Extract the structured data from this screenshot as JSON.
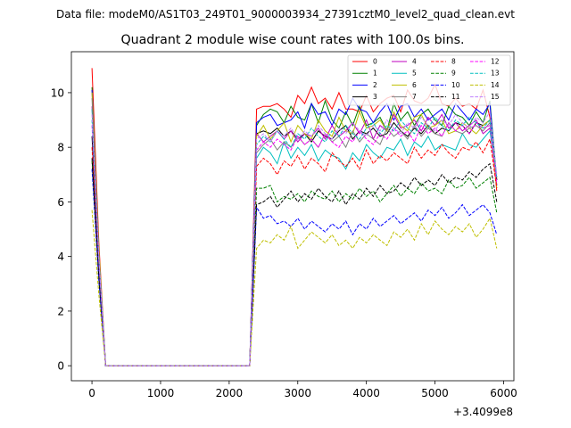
{
  "chart_data": {
    "type": "line",
    "suptitle": "Data file: modeM0/AS1T03_249T01_9000003934_27391cztM0_level2_quad_clean.evt",
    "title": "Quadrant 2 module wise count rates with 100.0s bins.",
    "xlabel": "",
    "ylabel": "",
    "x_offset_label": "+3.4099e8",
    "xlim": [
      -300,
      6150
    ],
    "ylim": [
      -0.55,
      11.5
    ],
    "xticks": [
      0,
      1000,
      2000,
      3000,
      4000,
      5000,
      6000
    ],
    "yticks": [
      0,
      2,
      4,
      6,
      8,
      10
    ],
    "grid": false,
    "legend_position": "top-right",
    "legend_columns": 4,
    "x": [
      0,
      100,
      200,
      300,
      400,
      500,
      600,
      700,
      800,
      900,
      1000,
      1100,
      1200,
      1300,
      1400,
      1500,
      1600,
      1700,
      1800,
      1900,
      2000,
      2100,
      2200,
      2300,
      2400,
      2500,
      2600,
      2700,
      2800,
      2900,
      3000,
      3100,
      3200,
      3300,
      3400,
      3500,
      3600,
      3700,
      3800,
      3900,
      4000,
      4100,
      4200,
      4300,
      4400,
      4500,
      4600,
      4700,
      4800,
      4900,
      5000,
      5100,
      5200,
      5300,
      5400,
      5500,
      5600,
      5700,
      5800,
      5900
    ],
    "series": [
      {
        "name": "0",
        "color": "#ff0000",
        "dash": false,
        "values": [
          10.9,
          4.5,
          0,
          0,
          0,
          0,
          0,
          0,
          0,
          0,
          0,
          0,
          0,
          0,
          0,
          0,
          0,
          0,
          0,
          0,
          0,
          0,
          0,
          0,
          9.4,
          9.5,
          9.5,
          9.6,
          9.4,
          9.1,
          9.9,
          9.6,
          10.2,
          9.6,
          9.8,
          9.4,
          10.0,
          9.4,
          9.4,
          9.3,
          9.9,
          9.3,
          9.6,
          9.8,
          9.9,
          9.3,
          10.1,
          9.7,
          9.6,
          9.8,
          10.3,
          9.6,
          9.5,
          9.8,
          9.5,
          9.6,
          9.4,
          10.1,
          9.1,
          6.4
        ]
      },
      {
        "name": "1",
        "color": "#008000",
        "dash": false,
        "values": [
          10.2,
          4.2,
          0,
          0,
          0,
          0,
          0,
          0,
          0,
          0,
          0,
          0,
          0,
          0,
          0,
          0,
          0,
          0,
          0,
          0,
          0,
          0,
          0,
          0,
          8.8,
          9.2,
          9.4,
          9.3,
          8.9,
          9.5,
          9.1,
          9.0,
          9.6,
          8.9,
          9.7,
          9.0,
          8.7,
          9.3,
          8.8,
          9.5,
          8.8,
          8.9,
          9.1,
          8.6,
          9.6,
          9.0,
          9.3,
          8.8,
          9.2,
          9.4,
          9.0,
          8.8,
          9.5,
          9.2,
          9.1,
          8.8,
          9.3,
          8.9,
          9.7,
          6.8
        ]
      },
      {
        "name": "2",
        "color": "#0000ff",
        "dash": false,
        "values": [
          10.1,
          4.1,
          0,
          0,
          0,
          0,
          0,
          0,
          0,
          0,
          0,
          0,
          0,
          0,
          0,
          0,
          0,
          0,
          0,
          0,
          0,
          0,
          0,
          0,
          8.9,
          9.1,
          9.2,
          8.8,
          8.9,
          9.0,
          9.3,
          8.7,
          9.6,
          9.2,
          9.3,
          8.8,
          9.4,
          9.2,
          9.8,
          9.4,
          9.3,
          8.9,
          9.3,
          9.6,
          9.0,
          9.5,
          9.6,
          9.1,
          9.4,
          9.0,
          9.2,
          9.4,
          9.0,
          9.6,
          9.3,
          9.0,
          9.4,
          9.2,
          9.6,
          6.6
        ]
      },
      {
        "name": "3",
        "color": "#000000",
        "dash": false,
        "values": [
          8.4,
          3.6,
          0,
          0,
          0,
          0,
          0,
          0,
          0,
          0,
          0,
          0,
          0,
          0,
          0,
          0,
          0,
          0,
          0,
          0,
          0,
          0,
          0,
          0,
          8.5,
          8.6,
          8.5,
          8.7,
          8.4,
          8.6,
          8.3,
          8.5,
          8.2,
          8.6,
          8.4,
          8.3,
          8.6,
          8.8,
          8.3,
          8.6,
          8.5,
          8.7,
          8.4,
          8.5,
          8.9,
          8.6,
          8.4,
          8.7,
          8.5,
          8.8,
          8.5,
          8.7,
          8.6,
          8.9,
          8.8,
          8.5,
          8.9,
          8.8,
          9.0,
          6.8
        ]
      },
      {
        "name": "4",
        "color": "#bf00bf",
        "dash": false,
        "values": [
          9.5,
          4.0,
          0,
          0,
          0,
          0,
          0,
          0,
          0,
          0,
          0,
          0,
          0,
          0,
          0,
          0,
          0,
          0,
          0,
          0,
          0,
          0,
          0,
          0,
          8.5,
          8.2,
          8.4,
          8.6,
          8.3,
          8.6,
          8.2,
          8.5,
          8.4,
          8.7,
          8.3,
          8.8,
          8.4,
          8.6,
          8.9,
          8.5,
          9.0,
          8.3,
          8.8,
          8.6,
          9.2,
          8.7,
          8.8,
          9.0,
          8.6,
          9.1,
          8.8,
          9.2,
          8.7,
          8.9,
          8.6,
          8.8,
          9.0,
          8.5,
          8.7,
          6.6
        ]
      },
      {
        "name": "5",
        "color": "#00bfbf",
        "dash": false,
        "values": [
          9.4,
          4.0,
          0,
          0,
          0,
          0,
          0,
          0,
          0,
          0,
          0,
          0,
          0,
          0,
          0,
          0,
          0,
          0,
          0,
          0,
          0,
          0,
          0,
          0,
          7.6,
          8.0,
          7.8,
          7.4,
          8.2,
          7.6,
          8.0,
          7.7,
          8.1,
          7.5,
          7.9,
          7.7,
          7.6,
          7.2,
          7.8,
          7.5,
          8.1,
          7.8,
          7.6,
          8.0,
          7.9,
          8.3,
          7.7,
          8.2,
          8.0,
          8.4,
          7.9,
          8.1,
          8.0,
          7.9,
          8.5,
          8.1,
          8.0,
          8.3,
          8.6,
          6.9
        ]
      },
      {
        "name": "6",
        "color": "#bfbf00",
        "dash": false,
        "values": [
          10.0,
          4.3,
          0,
          0,
          0,
          0,
          0,
          0,
          0,
          0,
          0,
          0,
          0,
          0,
          0,
          0,
          0,
          0,
          0,
          0,
          0,
          0,
          0,
          0,
          8.4,
          8.8,
          8.3,
          8.6,
          8.9,
          8.2,
          8.8,
          8.5,
          8.3,
          9.0,
          8.6,
          8.4,
          9.1,
          8.6,
          8.5,
          9.3,
          8.7,
          8.8,
          9.0,
          8.6,
          9.3,
          8.8,
          8.6,
          9.1,
          9.2,
          8.7,
          8.8,
          9.0,
          8.5,
          8.6,
          8.9,
          8.7,
          8.5,
          8.8,
          9.0,
          6.5
        ]
      },
      {
        "name": "7",
        "color": "#808080",
        "dash": false,
        "values": [
          9.8,
          4.1,
          0,
          0,
          0,
          0,
          0,
          0,
          0,
          0,
          0,
          0,
          0,
          0,
          0,
          0,
          0,
          0,
          0,
          0,
          0,
          0,
          0,
          0,
          7.8,
          8.1,
          8.3,
          7.9,
          8.2,
          8.0,
          8.4,
          8.1,
          8.3,
          8.0,
          8.5,
          8.2,
          8.4,
          8.0,
          8.6,
          8.2,
          8.5,
          8.3,
          8.1,
          8.7,
          8.4,
          8.6,
          8.3,
          8.8,
          8.4,
          8.7,
          8.5,
          8.4,
          8.9,
          8.6,
          8.5,
          8.7,
          8.8,
          8.6,
          8.9,
          6.9
        ]
      },
      {
        "name": "8",
        "color": "#ff0000",
        "dash": true,
        "values": [
          8.0,
          3.4,
          0,
          0,
          0,
          0,
          0,
          0,
          0,
          0,
          0,
          0,
          0,
          0,
          0,
          0,
          0,
          0,
          0,
          0,
          0,
          0,
          0,
          0,
          7.3,
          7.6,
          7.4,
          7.0,
          7.5,
          7.3,
          7.7,
          7.2,
          7.6,
          7.4,
          7.1,
          7.8,
          7.5,
          7.3,
          7.6,
          7.2,
          7.9,
          7.4,
          7.7,
          7.5,
          7.8,
          7.6,
          7.4,
          8.0,
          7.6,
          7.9,
          7.7,
          8.1,
          7.8,
          7.6,
          8.0,
          7.9,
          8.2,
          7.8,
          8.3,
          6.5
        ]
      },
      {
        "name": "9",
        "color": "#008000",
        "dash": true,
        "values": [
          7.5,
          3.2,
          0,
          0,
          0,
          0,
          0,
          0,
          0,
          0,
          0,
          0,
          0,
          0,
          0,
          0,
          0,
          0,
          0,
          0,
          0,
          0,
          0,
          0,
          6.5,
          6.5,
          6.6,
          6.0,
          6.2,
          6.1,
          6.3,
          6.0,
          6.4,
          6.2,
          6.1,
          6.4,
          6.0,
          6.3,
          6.1,
          6.5,
          6.2,
          6.4,
          6.0,
          6.3,
          6.6,
          6.2,
          6.5,
          6.3,
          6.7,
          6.4,
          6.5,
          6.3,
          6.8,
          6.5,
          6.6,
          6.9,
          6.5,
          6.7,
          6.9,
          5.6
        ]
      },
      {
        "name": "10",
        "color": "#0000ff",
        "dash": true,
        "values": [
          7.2,
          3.1,
          0,
          0,
          0,
          0,
          0,
          0,
          0,
          0,
          0,
          0,
          0,
          0,
          0,
          0,
          0,
          0,
          0,
          0,
          0,
          0,
          0,
          0,
          5.8,
          5.4,
          5.5,
          5.2,
          5.3,
          5.1,
          5.4,
          5.0,
          5.3,
          5.1,
          4.9,
          5.2,
          5.0,
          5.3,
          4.8,
          5.2,
          5.0,
          5.4,
          5.1,
          5.3,
          5.5,
          5.2,
          5.4,
          5.6,
          5.3,
          5.7,
          5.5,
          5.8,
          5.4,
          5.6,
          5.9,
          5.5,
          5.7,
          5.9,
          5.6,
          4.8
        ]
      },
      {
        "name": "11",
        "color": "#000000",
        "dash": true,
        "values": [
          7.6,
          3.3,
          0,
          0,
          0,
          0,
          0,
          0,
          0,
          0,
          0,
          0,
          0,
          0,
          0,
          0,
          0,
          0,
          0,
          0,
          0,
          0,
          0,
          0,
          5.9,
          6.0,
          6.2,
          5.8,
          6.1,
          6.4,
          6.0,
          6.3,
          6.1,
          6.5,
          6.2,
          6.0,
          6.4,
          5.9,
          6.3,
          6.1,
          6.5,
          6.2,
          6.6,
          6.3,
          6.4,
          6.7,
          6.5,
          6.9,
          6.6,
          6.8,
          6.6,
          7.0,
          6.7,
          6.9,
          6.8,
          7.1,
          6.9,
          7.2,
          7.4,
          6.0
        ]
      },
      {
        "name": "12",
        "color": "#ff00ff",
        "dash": true,
        "values": [
          8.8,
          3.8,
          0,
          0,
          0,
          0,
          0,
          0,
          0,
          0,
          0,
          0,
          0,
          0,
          0,
          0,
          0,
          0,
          0,
          0,
          0,
          0,
          0,
          0,
          7.9,
          8.2,
          8.0,
          8.3,
          8.1,
          7.9,
          8.4,
          8.1,
          8.3,
          8.0,
          8.5,
          8.2,
          8.0,
          8.4,
          8.2,
          8.6,
          8.3,
          8.1,
          8.5,
          8.3,
          8.7,
          8.4,
          8.6,
          8.2,
          8.8,
          8.5,
          8.7,
          8.4,
          8.9,
          8.6,
          8.8,
          8.5,
          8.9,
          8.7,
          8.8,
          6.7
        ]
      },
      {
        "name": "13",
        "color": "#00bfbf",
        "dash": true,
        "values": [
          9.0,
          3.9,
          0,
          0,
          0,
          0,
          0,
          0,
          0,
          0,
          0,
          0,
          0,
          0,
          0,
          0,
          0,
          0,
          0,
          0,
          0,
          0,
          0,
          0,
          8.1,
          8.4,
          8.2,
          8.6,
          8.3,
          8.0,
          8.5,
          8.3,
          8.7,
          8.4,
          8.2,
          8.6,
          8.4,
          8.8,
          8.5,
          8.3,
          8.7,
          8.9,
          8.5,
          8.8,
          8.6,
          9.0,
          8.7,
          8.5,
          8.9,
          8.7,
          9.1,
          8.8,
          8.6,
          9.0,
          8.8,
          9.1,
          8.9,
          8.7,
          9.0,
          6.9
        ]
      },
      {
        "name": "14",
        "color": "#bfbf00",
        "dash": true,
        "values": [
          5.7,
          2.6,
          0,
          0,
          0,
          0,
          0,
          0,
          0,
          0,
          0,
          0,
          0,
          0,
          0,
          0,
          0,
          0,
          0,
          0,
          0,
          0,
          0,
          0,
          4.3,
          4.6,
          4.5,
          4.8,
          4.6,
          5.1,
          4.3,
          4.6,
          4.9,
          4.7,
          4.5,
          4.8,
          4.4,
          4.6,
          4.3,
          4.7,
          4.5,
          4.8,
          4.6,
          4.4,
          4.9,
          4.7,
          5.0,
          4.6,
          5.2,
          4.8,
          5.3,
          5.0,
          4.8,
          5.1,
          4.9,
          5.2,
          4.7,
          5.0,
          5.4,
          4.3
        ]
      },
      {
        "name": "15",
        "color": "#bf80ff",
        "dash": true,
        "values": [
          9.2,
          3.9,
          0,
          0,
          0,
          0,
          0,
          0,
          0,
          0,
          0,
          0,
          0,
          0,
          0,
          0,
          0,
          0,
          0,
          0,
          0,
          0,
          0,
          0,
          8.3,
          8.5,
          8.2,
          8.6,
          8.4,
          8.7,
          8.3,
          8.6,
          8.4,
          8.8,
          8.5,
          8.3,
          8.7,
          8.5,
          8.9,
          8.6,
          8.4,
          8.8,
          8.6,
          9.0,
          8.7,
          8.5,
          8.9,
          8.7,
          9.1,
          8.8,
          8.6,
          9.0,
          8.8,
          9.2,
          8.9,
          8.7,
          9.1,
          8.9,
          9.3,
          7.0
        ]
      }
    ]
  }
}
